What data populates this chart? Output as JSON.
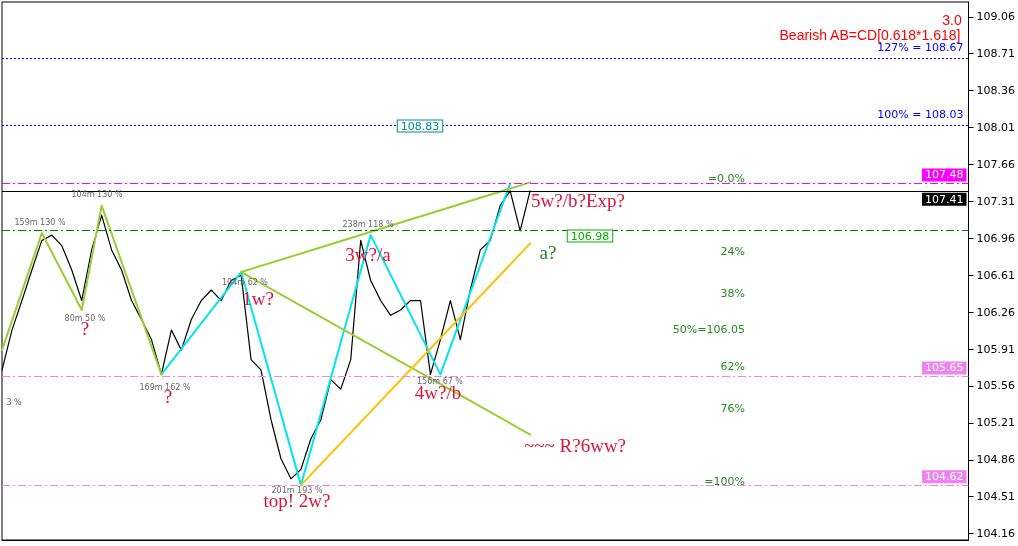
{
  "chart_data": {
    "type": "line",
    "categories": [
      null,
      null,
      null,
      null,
      null,
      null,
      null,
      null,
      null,
      null,
      null,
      null,
      null,
      null,
      null,
      null,
      null,
      null,
      null,
      null,
      null,
      null,
      null,
      null,
      null,
      null,
      null,
      null,
      null,
      null,
      null,
      null,
      null,
      null,
      null,
      null,
      null,
      null,
      null,
      null,
      null,
      null,
      null,
      null,
      null,
      null,
      null,
      null,
      null,
      null,
      null,
      null,
      null,
      null
    ],
    "series": [
      {
        "color": "#000000",
        "values": [
          105.71,
          106.09,
          106.37,
          106.66,
          106.94,
          106.99,
          106.89,
          106.66,
          106.37,
          106.85,
          107.18,
          106.85,
          106.66,
          106.37,
          106.19,
          106.0,
          105.67,
          106.09,
          105.9,
          106.19,
          106.37,
          106.47,
          106.37,
          106.56,
          106.61,
          105.81,
          105.71,
          105.24,
          104.87,
          104.68,
          104.77,
          105.06,
          105.24,
          105.62,
          105.53,
          105.81,
          106.94,
          106.56,
          106.37,
          106.23,
          106.28,
          106.37,
          106.37,
          105.67,
          106.0,
          106.37,
          106.0,
          106.47,
          106.85,
          106.94,
          107.27,
          107.41,
          107.03,
          107.41
        ]
      },
      {
        "color": "#00e5ee",
        "values": [
          null,
          null,
          null,
          null,
          null,
          null,
          null,
          null,
          null,
          null,
          null,
          null,
          null,
          null,
          null,
          null,
          105.67,
          null,
          null,
          null,
          null,
          null,
          null,
          null,
          106.64,
          null,
          null,
          null,
          null,
          null,
          104.62,
          null,
          null,
          null,
          null,
          null,
          null,
          106.99,
          null,
          null,
          null,
          null,
          null,
          null,
          105.67,
          null,
          null,
          null,
          null,
          null,
          null,
          107.48,
          null,
          null
        ]
      },
      {
        "color": "#9acd32",
        "values": [
          105.9,
          null,
          null,
          null,
          107.01,
          null,
          null,
          null,
          106.28,
          null,
          107.27,
          null,
          null,
          null,
          null,
          null,
          105.67,
          null,
          null,
          null,
          null,
          null,
          null,
          null,
          null,
          null,
          null,
          null,
          null,
          null,
          null,
          null,
          null,
          null,
          null,
          null,
          null,
          null,
          null,
          null,
          null,
          null,
          null,
          null,
          null,
          null,
          null,
          null,
          null,
          null,
          null,
          null,
          null,
          null
        ]
      },
      {
        "color": "#9acd32",
        "values": [
          null,
          null,
          null,
          null,
          null,
          null,
          null,
          null,
          null,
          null,
          null,
          null,
          null,
          null,
          null,
          null,
          null,
          null,
          null,
          null,
          null,
          null,
          null,
          null,
          106.64,
          null,
          null,
          null,
          null,
          null,
          null,
          null,
          null,
          null,
          null,
          null,
          null,
          null,
          null,
          null,
          null,
          null,
          null,
          null,
          null,
          null,
          null,
          null,
          null,
          null,
          null,
          null,
          null,
          107.49
        ]
      },
      {
        "color": "#9acd32",
        "values": [
          null,
          null,
          null,
          null,
          null,
          null,
          null,
          null,
          null,
          null,
          null,
          null,
          null,
          null,
          null,
          null,
          null,
          null,
          null,
          null,
          null,
          null,
          null,
          null,
          106.64,
          null,
          null,
          null,
          null,
          null,
          null,
          null,
          null,
          null,
          null,
          null,
          null,
          null,
          null,
          null,
          null,
          null,
          null,
          null,
          null,
          null,
          null,
          null,
          null,
          null,
          null,
          null,
          null,
          105.1
        ]
      },
      {
        "color": "#ffc000",
        "values": [
          null,
          null,
          null,
          null,
          null,
          null,
          null,
          null,
          null,
          null,
          null,
          null,
          null,
          null,
          null,
          null,
          null,
          null,
          null,
          null,
          null,
          null,
          null,
          null,
          null,
          null,
          null,
          null,
          null,
          null,
          104.62,
          null,
          null,
          null,
          null,
          null,
          null,
          null,
          null,
          null,
          null,
          null,
          null,
          null,
          null,
          null,
          null,
          null,
          null,
          null,
          null,
          null,
          null,
          106.91
        ]
      }
    ],
    "ylim": [
      104.1,
      109.2
    ],
    "yticks": [
      104.16,
      104.51,
      104.86,
      105.21,
      105.56,
      105.91,
      106.26,
      106.61,
      106.96,
      107.31,
      107.66,
      108.01,
      108.36,
      108.71,
      109.06
    ],
    "tick_labels": "y",
    "grid": false,
    "marker": "none",
    "ref_lines": [
      {
        "axis": "y",
        "value": 107.48,
        "label": "107.48",
        "color": "#ff00ff",
        "line_style": "dashed"
      },
      {
        "axis": "y",
        "value": 107.41,
        "label": "107.41",
        "color": "#000000",
        "line_style": "solid"
      },
      {
        "axis": "y",
        "value": 105.65,
        "label": "105.65",
        "color": "#ee82ee",
        "line_style": "dashed"
      },
      {
        "axis": "y",
        "value": 104.62,
        "label": "104.62",
        "color": "#ee82ee",
        "line_style": "dashed"
      },
      {
        "axis": "y",
        "value": 108.67,
        "label": "127% = 108.67",
        "color": "#0000ff",
        "line_style": "dotted"
      },
      {
        "axis": "y",
        "value": 108.03,
        "label": "100% = 108.03",
        "color": "#0000ff",
        "line_style": "dotted"
      },
      {
        "axis": "y",
        "value": 107.04,
        "color": "#008000",
        "line_style": "dashed"
      }
    ],
    "annotations": [
      "Bearish AB=CD[0.618*1.618]",
      "3.0",
      "108.83",
      "3w?/a",
      "1w?",
      "?",
      "?",
      "top! 2w?",
      "4w?/b",
      "5w?/b?Exp?",
      "a?",
      "106.98",
      "~~~ R?6ww?",
      "=0.0%",
      "24%",
      "38%",
      "50%=106.05",
      "62%",
      "76%",
      "=100%",
      "159m 130 %",
      "104m 130 %",
      "80m 50 %",
      "169m 162 %",
      "104m 62 %",
      "201m 193 %",
      "238m 118 %",
      "156m 67 %",
      "3 %"
    ]
  }
}
